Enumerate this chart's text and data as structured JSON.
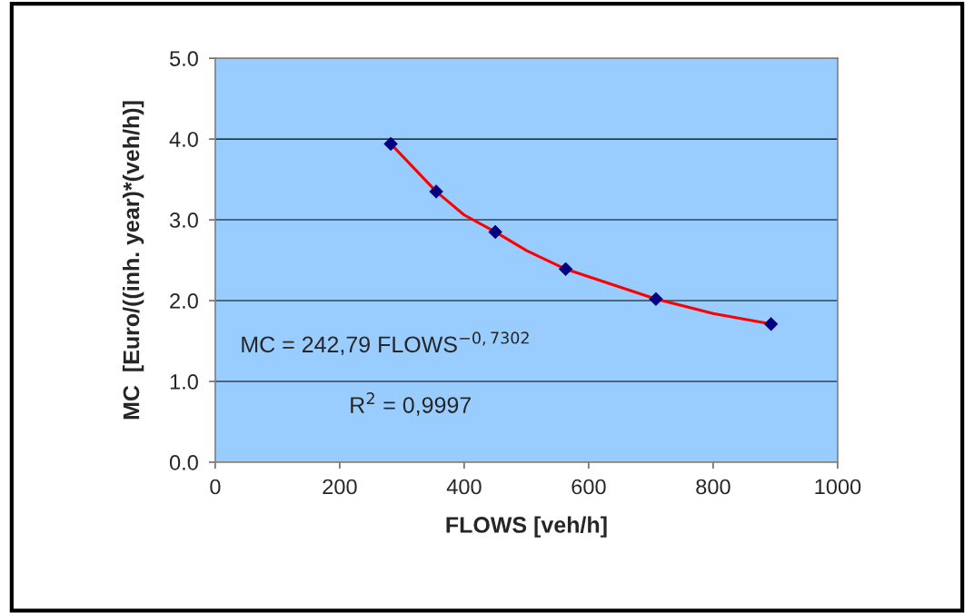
{
  "chart_data": {
    "type": "scatter",
    "xlabel": "FLOWS [veh/h]",
    "ylabel": "MC  [Euro/((inh. year)*(veh/h)]",
    "series": [
      {
        "color": "#000080",
        "marker": "diamond",
        "x": [
          282,
          355,
          450,
          563,
          708,
          893
        ],
        "values": [
          3.94,
          3.35,
          2.85,
          2.39,
          2.02,
          1.71
        ]
      },
      {
        "type": "line",
        "color": "#ff0000",
        "marker": "none",
        "line_style": "solid",
        "x": [
          282,
          355,
          400,
          450,
          500,
          563,
          708,
          800,
          893
        ],
        "values": [
          3.94,
          3.35,
          3.06,
          2.85,
          2.62,
          2.39,
          2.02,
          1.84,
          1.71
        ]
      }
    ],
    "xlim": [
      0,
      1000
    ],
    "xticks": [
      0,
      200,
      400,
      600,
      800,
      1000
    ],
    "ylim": [
      0,
      5
    ],
    "yticks": [
      {
        "value": 0,
        "label": "0.0"
      },
      {
        "value": 1,
        "label": "1.0"
      },
      {
        "value": 2,
        "label": "2.0"
      },
      {
        "value": 3,
        "label": "3.0"
      },
      {
        "value": 4,
        "label": "4.0"
      },
      {
        "value": 5,
        "label": "5.0"
      }
    ],
    "grid": "y",
    "legend": false,
    "annotations": [
      "MC = 242,79 FLOWS$^{−0,7302}$",
      "R$^{2}$ = 0,9997"
    ]
  }
}
